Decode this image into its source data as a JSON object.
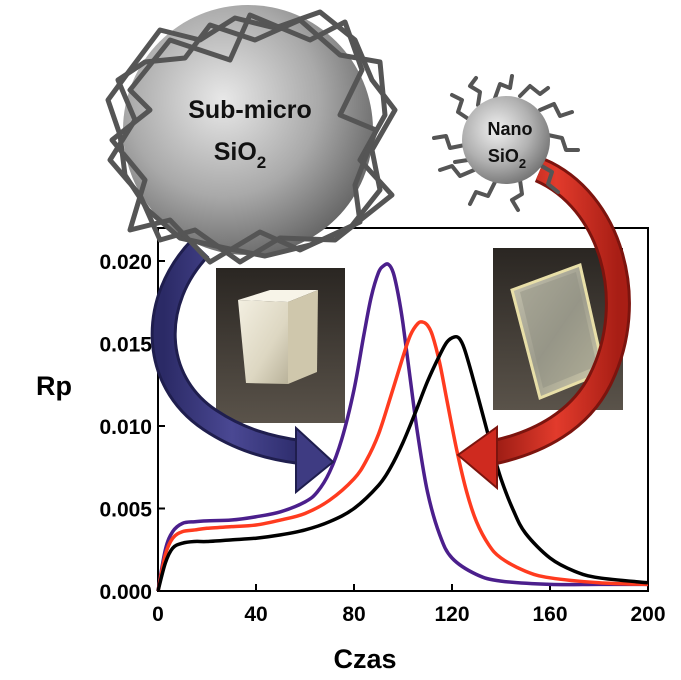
{
  "chart_data": {
    "type": "line",
    "xlabel": "Czas",
    "ylabel": "Rp",
    "xlim": [
      0,
      200
    ],
    "ylim": [
      0,
      0.022
    ],
    "x_ticks": [
      "0",
      "40",
      "80",
      "120",
      "160",
      "200"
    ],
    "y_ticks": [
      "0.000",
      "0.005",
      "0.010",
      "0.015",
      "0.020"
    ],
    "grid": false,
    "series": [
      {
        "color": "#4b1f8c",
        "x": [
          0,
          3,
          6,
          10,
          15,
          20,
          30,
          40,
          50,
          60,
          65,
          70,
          75,
          80,
          84,
          87,
          90,
          92,
          94,
          96,
          98,
          100,
          103,
          106,
          110,
          115,
          120,
          130,
          140,
          160,
          180,
          200
        ],
        "y": [
          0,
          0.0025,
          0.0036,
          0.0041,
          0.0042,
          0.00425,
          0.0043,
          0.0045,
          0.0048,
          0.0054,
          0.006,
          0.0072,
          0.0092,
          0.0122,
          0.0155,
          0.0178,
          0.0193,
          0.0197,
          0.0198,
          0.0193,
          0.018,
          0.0162,
          0.0128,
          0.0095,
          0.006,
          0.0034,
          0.002,
          0.001,
          0.0006,
          0.0004,
          0.0004,
          0.0004
        ]
      },
      {
        "color": "#ff3b1f",
        "x": [
          0,
          3,
          6,
          10,
          15,
          20,
          30,
          40,
          50,
          60,
          70,
          80,
          85,
          90,
          95,
          100,
          103,
          106,
          108,
          110,
          112,
          115,
          118,
          122,
          126,
          130,
          135,
          140,
          150,
          160,
          180,
          200
        ],
        "y": [
          0,
          0.0022,
          0.0032,
          0.0036,
          0.0037,
          0.0038,
          0.0039,
          0.004,
          0.0043,
          0.0047,
          0.0055,
          0.0068,
          0.0079,
          0.0095,
          0.0118,
          0.0142,
          0.0155,
          0.0162,
          0.0163,
          0.0161,
          0.0155,
          0.0138,
          0.0115,
          0.0085,
          0.006,
          0.0042,
          0.0028,
          0.002,
          0.0012,
          0.0008,
          0.0005,
          0.0004
        ]
      },
      {
        "color": "#000000",
        "x": [
          0,
          3,
          6,
          10,
          15,
          20,
          30,
          40,
          50,
          60,
          70,
          80,
          90,
          95,
          100,
          105,
          110,
          115,
          118,
          121,
          123,
          125,
          128,
          132,
          136,
          140,
          145,
          150,
          160,
          170,
          180,
          200
        ],
        "y": [
          0,
          0.0017,
          0.0026,
          0.0029,
          0.003,
          0.003,
          0.0031,
          0.0032,
          0.0034,
          0.0037,
          0.0042,
          0.005,
          0.0064,
          0.0075,
          0.009,
          0.0108,
          0.0127,
          0.0143,
          0.0151,
          0.0154,
          0.0153,
          0.0147,
          0.0132,
          0.011,
          0.0088,
          0.0068,
          0.0049,
          0.0035,
          0.002,
          0.0012,
          0.0008,
          0.0005
        ]
      }
    ],
    "annotations": [
      {
        "text": "Sub-micro",
        "subscript_text": "SiO2",
        "target": "opaque sample photo"
      },
      {
        "text": "Nano",
        "subscript_text": "SiO2",
        "target": "transparent sample photo"
      }
    ]
  },
  "labels": {
    "sub_micro_line1": "Sub-micro",
    "sub_micro_line2_main": "SiO",
    "sub_micro_line2_sub": "2",
    "nano_line1": "Nano",
    "nano_line2_main": "SiO",
    "nano_line2_sub": "2"
  },
  "colors": {
    "blue_arrow": "#3e3b82",
    "red_arrow": "#cf2a1f",
    "sphere_large": "#9a9a9a",
    "sphere_small": "#a5a5a5"
  }
}
